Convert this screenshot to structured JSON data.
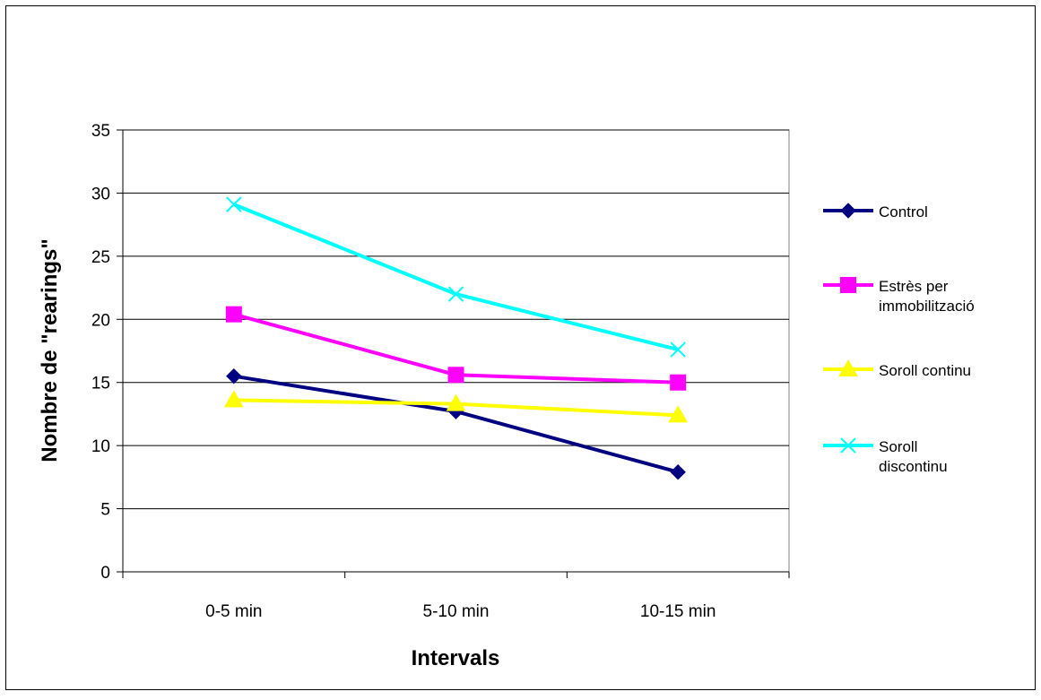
{
  "chart_data": {
    "type": "line",
    "title": "",
    "xlabel": "Intervals",
    "ylabel": "Nombre de \"rearings\"",
    "categories": [
      "0-5 min",
      "5-10 min",
      "10-15 min"
    ],
    "ylim": [
      0,
      35
    ],
    "yticks": [
      "0",
      "5",
      "10",
      "15",
      "20",
      "25",
      "30",
      "35"
    ],
    "grid": "horizontal",
    "legend_position": "right",
    "series": [
      {
        "name": "Control",
        "values": [
          15.5,
          12.7,
          7.9
        ],
        "color": "#000080",
        "marker": "diamond"
      },
      {
        "name": "Estrès per immobilització",
        "values": [
          20.4,
          15.6,
          15.0
        ],
        "color": "#ff00ff",
        "marker": "square"
      },
      {
        "name": "Soroll continu",
        "values": [
          13.6,
          13.3,
          12.4
        ],
        "color": "#ffff00",
        "marker": "triangle"
      },
      {
        "name": "Soroll discontinu",
        "values": [
          29.1,
          22.0,
          17.6
        ],
        "color": "#00ffff",
        "marker": "x"
      }
    ]
  }
}
